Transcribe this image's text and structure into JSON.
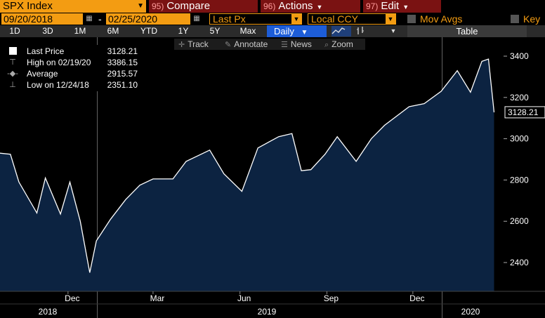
{
  "header": {
    "ticker": "SPX Index",
    "compare": {
      "num": "95)",
      "label": "Compare"
    },
    "actions": {
      "num": "96)",
      "label": "Actions"
    },
    "edit": {
      "num": "97)",
      "label": "Edit"
    }
  },
  "controls": {
    "start_date": "09/20/2018",
    "end_date": "02/25/2020",
    "field": "Last Px",
    "currency": "Local CCY",
    "mov_avgs_label": "Mov Avgs",
    "key_label": "Key"
  },
  "timeframes": [
    "1D",
    "3D",
    "1M",
    "6M",
    "YTD",
    "1Y",
    "5Y",
    "Max"
  ],
  "frequency": "Daily",
  "table_label": "Table",
  "annotation_toolbar": {
    "track": "Track",
    "annotate": "Annotate",
    "news": "News",
    "zoom": "Zoom"
  },
  "legend": {
    "last_price_label": "Last Price",
    "last_price_value": "3128.21",
    "high_label": "High on 02/19/20",
    "high_value": "3386.15",
    "average_label": "Average",
    "average_value": "2915.57",
    "low_label": "Low on 12/24/18",
    "low_value": "2351.10"
  },
  "last_price_tag": "3128.21",
  "colors": {
    "orange": "#f39c12",
    "dark_red": "#7a1212",
    "blue_button": "#1d5dd8",
    "area_fill": "#0c2341",
    "line": "#ffffff"
  },
  "chart_data": {
    "type": "area",
    "series": [
      {
        "x": [
          "2018-09-20",
          "2018-10-01",
          "2018-10-10",
          "2018-10-29",
          "2018-11-07",
          "2018-11-23",
          "2018-12-03",
          "2018-12-14",
          "2018-12-24",
          "2018-12-31",
          "2019-01-15",
          "2019-01-31",
          "2019-02-15",
          "2019-03-01",
          "2019-03-22",
          "2019-04-05",
          "2019-04-30",
          "2019-05-15",
          "2019-06-03",
          "2019-06-20",
          "2019-07-12",
          "2019-07-26",
          "2019-08-05",
          "2019-08-15",
          "2019-08-30",
          "2019-09-12",
          "2019-10-02",
          "2019-10-18",
          "2019-11-01",
          "2019-11-27",
          "2019-12-13",
          "2019-12-31",
          "2020-01-17",
          "2020-01-31",
          "2020-02-12",
          "2020-02-19",
          "2020-02-25"
        ],
        "y": [
          2930,
          2925,
          2790,
          2640,
          2810,
          2635,
          2790,
          2600,
          2351,
          2505,
          2610,
          2705,
          2775,
          2805,
          2805,
          2890,
          2945,
          2830,
          2745,
          2955,
          3010,
          3025,
          2845,
          2850,
          2925,
          3010,
          2890,
          3000,
          3065,
          3155,
          3170,
          3230,
          3330,
          3225,
          3375,
          3386,
          3128
        ]
      }
    ],
    "y_ticks": [
      2400,
      2600,
      2800,
      3000,
      3200,
      3400
    ],
    "x_month_labels": [
      "Dec",
      "Mar",
      "Jun",
      "Sep",
      "Dec"
    ],
    "x_year_labels": [
      "2018",
      "2019",
      "2020"
    ]
  }
}
